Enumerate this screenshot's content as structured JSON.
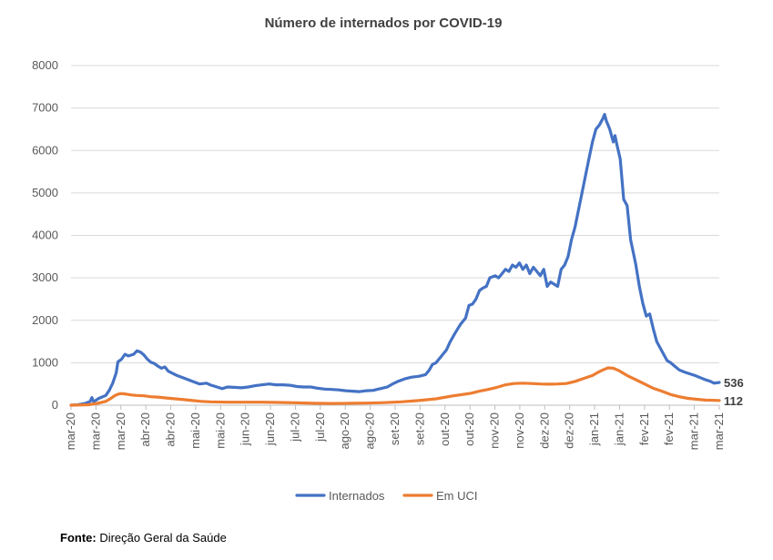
{
  "chart_data": {
    "type": "line",
    "title": "Número de internados por COVID-19",
    "xlabel": "",
    "ylabel": "",
    "ylim": [
      0,
      8000
    ],
    "yticks": [
      0,
      1000,
      2000,
      3000,
      4000,
      5000,
      6000,
      7000,
      8000
    ],
    "xtick_labels": [
      "mar-20",
      "mar-20",
      "mar-20",
      "abr-20",
      "abr-20",
      "mai-20",
      "mai-20",
      "jun-20",
      "jun-20",
      "jul-20",
      "jul-20",
      "ago-20",
      "ago-20",
      "set-20",
      "set-20",
      "out-20",
      "out-20",
      "nov-20",
      "nov-20",
      "dez-20",
      "dez-20",
      "jan-21",
      "jan-21",
      "fev-21",
      "fev-21",
      "mar-21",
      "mar-21"
    ],
    "x_range_days": [
      0,
      373
    ],
    "legend": "bottom",
    "gridlines": true,
    "series": [
      {
        "name": "Internados",
        "color": "#4472C4",
        "end_label": "536",
        "points": [
          [
            0,
            0
          ],
          [
            4,
            10
          ],
          [
            8,
            40
          ],
          [
            11,
            90
          ],
          [
            12,
            180
          ],
          [
            13,
            80
          ],
          [
            16,
            160
          ],
          [
            20,
            230
          ],
          [
            22,
            350
          ],
          [
            24,
            520
          ],
          [
            26,
            760
          ],
          [
            27,
            1020
          ],
          [
            29,
            1080
          ],
          [
            31,
            1200
          ],
          [
            33,
            1160
          ],
          [
            36,
            1200
          ],
          [
            38,
            1280
          ],
          [
            40,
            1250
          ],
          [
            42,
            1180
          ],
          [
            44,
            1080
          ],
          [
            46,
            1010
          ],
          [
            48,
            980
          ],
          [
            50,
            920
          ],
          [
            52,
            870
          ],
          [
            54,
            900
          ],
          [
            56,
            800
          ],
          [
            58,
            760
          ],
          [
            61,
            700
          ],
          [
            65,
            640
          ],
          [
            70,
            560
          ],
          [
            74,
            500
          ],
          [
            78,
            520
          ],
          [
            80,
            480
          ],
          [
            84,
            430
          ],
          [
            87,
            390
          ],
          [
            90,
            430
          ],
          [
            94,
            420
          ],
          [
            98,
            410
          ],
          [
            102,
            430
          ],
          [
            106,
            460
          ],
          [
            110,
            480
          ],
          [
            114,
            500
          ],
          [
            118,
            480
          ],
          [
            122,
            480
          ],
          [
            126,
            470
          ],
          [
            130,
            440
          ],
          [
            134,
            430
          ],
          [
            138,
            430
          ],
          [
            142,
            400
          ],
          [
            146,
            380
          ],
          [
            150,
            370
          ],
          [
            154,
            360
          ],
          [
            158,
            340
          ],
          [
            162,
            330
          ],
          [
            166,
            320
          ],
          [
            170,
            340
          ],
          [
            174,
            350
          ],
          [
            176,
            370
          ],
          [
            178,
            390
          ],
          [
            182,
            430
          ],
          [
            185,
            500
          ],
          [
            188,
            560
          ],
          [
            192,
            620
          ],
          [
            196,
            660
          ],
          [
            200,
            680
          ],
          [
            204,
            720
          ],
          [
            206,
            820
          ],
          [
            208,
            960
          ],
          [
            210,
            1000
          ],
          [
            213,
            1150
          ],
          [
            216,
            1300
          ],
          [
            218,
            1480
          ],
          [
            221,
            1700
          ],
          [
            224,
            1900
          ],
          [
            227,
            2050
          ],
          [
            229,
            2350
          ],
          [
            231,
            2380
          ],
          [
            233,
            2500
          ],
          [
            235,
            2700
          ],
          [
            237,
            2760
          ],
          [
            239,
            2800
          ],
          [
            241,
            3000
          ],
          [
            244,
            3050
          ],
          [
            246,
            3000
          ],
          [
            248,
            3100
          ],
          [
            250,
            3200
          ],
          [
            252,
            3150
          ],
          [
            254,
            3300
          ],
          [
            256,
            3250
          ],
          [
            258,
            3350
          ],
          [
            260,
            3200
          ],
          [
            262,
            3300
          ],
          [
            264,
            3100
          ],
          [
            266,
            3250
          ],
          [
            268,
            3150
          ],
          [
            270,
            3050
          ],
          [
            272,
            3200
          ],
          [
            274,
            2800
          ],
          [
            276,
            2900
          ],
          [
            278,
            2850
          ],
          [
            280,
            2800
          ],
          [
            282,
            3200
          ],
          [
            284,
            3300
          ],
          [
            286,
            3500
          ],
          [
            288,
            3900
          ],
          [
            290,
            4200
          ],
          [
            292,
            4600
          ],
          [
            294,
            5000
          ],
          [
            296,
            5400
          ],
          [
            298,
            5800
          ],
          [
            300,
            6200
          ],
          [
            302,
            6500
          ],
          [
            304,
            6600
          ],
          [
            306,
            6750
          ],
          [
            307,
            6850
          ],
          [
            308,
            6700
          ],
          [
            310,
            6500
          ],
          [
            312,
            6200
          ],
          [
            313,
            6350
          ],
          [
            314,
            6150
          ],
          [
            316,
            5800
          ],
          [
            318,
            4850
          ],
          [
            320,
            4700
          ],
          [
            322,
            3900
          ],
          [
            324,
            3500
          ],
          [
            325,
            3300
          ],
          [
            327,
            2800
          ],
          [
            329,
            2400
          ],
          [
            331,
            2100
          ],
          [
            333,
            2150
          ],
          [
            335,
            1800
          ],
          [
            337,
            1500
          ],
          [
            339,
            1350
          ],
          [
            341,
            1200
          ],
          [
            343,
            1050
          ],
          [
            345,
            1000
          ],
          [
            347,
            930
          ],
          [
            350,
            830
          ],
          [
            353,
            780
          ],
          [
            356,
            740
          ],
          [
            359,
            700
          ],
          [
            362,
            650
          ],
          [
            365,
            600
          ],
          [
            368,
            560
          ],
          [
            370,
            520
          ],
          [
            373,
            536
          ]
        ]
      },
      {
        "name": "Em UCI",
        "color": "#ED7D31",
        "end_label": "112",
        "points": [
          [
            0,
            0
          ],
          [
            10,
            10
          ],
          [
            15,
            40
          ],
          [
            20,
            90
          ],
          [
            23,
            160
          ],
          [
            25,
            220
          ],
          [
            27,
            260
          ],
          [
            29,
            275
          ],
          [
            32,
            260
          ],
          [
            35,
            240
          ],
          [
            38,
            230
          ],
          [
            42,
            220
          ],
          [
            46,
            200
          ],
          [
            50,
            190
          ],
          [
            55,
            170
          ],
          [
            60,
            150
          ],
          [
            65,
            130
          ],
          [
            70,
            110
          ],
          [
            75,
            90
          ],
          [
            80,
            80
          ],
          [
            90,
            70
          ],
          [
            100,
            70
          ],
          [
            110,
            70
          ],
          [
            120,
            65
          ],
          [
            130,
            55
          ],
          [
            140,
            45
          ],
          [
            150,
            40
          ],
          [
            160,
            45
          ],
          [
            170,
            50
          ],
          [
            180,
            60
          ],
          [
            190,
            80
          ],
          [
            200,
            110
          ],
          [
            210,
            150
          ],
          [
            220,
            220
          ],
          [
            230,
            280
          ],
          [
            235,
            330
          ],
          [
            240,
            370
          ],
          [
            245,
            420
          ],
          [
            250,
            480
          ],
          [
            255,
            510
          ],
          [
            260,
            520
          ],
          [
            265,
            510
          ],
          [
            270,
            500
          ],
          [
            275,
            495
          ],
          [
            280,
            500
          ],
          [
            285,
            510
          ],
          [
            290,
            560
          ],
          [
            295,
            630
          ],
          [
            300,
            700
          ],
          [
            303,
            770
          ],
          [
            306,
            830
          ],
          [
            309,
            880
          ],
          [
            312,
            870
          ],
          [
            315,
            820
          ],
          [
            320,
            700
          ],
          [
            325,
            600
          ],
          [
            330,
            500
          ],
          [
            335,
            400
          ],
          [
            340,
            330
          ],
          [
            345,
            250
          ],
          [
            350,
            200
          ],
          [
            355,
            160
          ],
          [
            360,
            140
          ],
          [
            365,
            120
          ],
          [
            373,
            112
          ]
        ]
      }
    ]
  },
  "source": {
    "label": "Fonte:",
    "text": " Direção Geral da Saúde"
  }
}
